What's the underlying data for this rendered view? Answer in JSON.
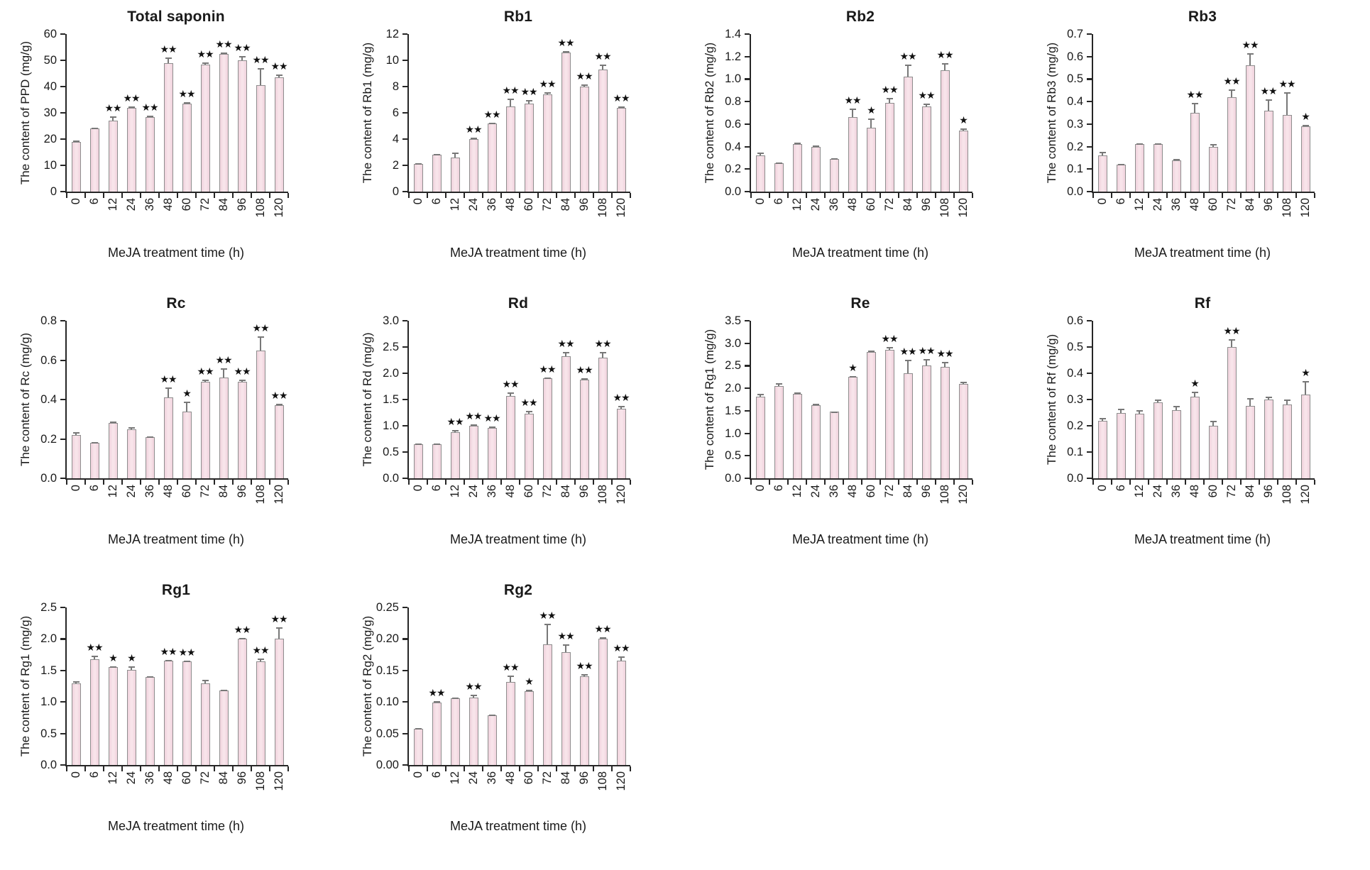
{
  "figure": {
    "x_axis_label": "MeJA treatment time (h)",
    "axis_color": "#262626",
    "bar_fill": "#f5dce4",
    "bar_border": "#8e8e8e",
    "error_color": "#787878",
    "star_color": "#111111"
  },
  "chart_data": [
    {
      "type": "bar",
      "title": "Total saponin",
      "ylabel": "The content of PPD (mg/g)",
      "xlabel": "MeJA treatment time (h)",
      "categories": [
        "0",
        "6",
        "12",
        "24",
        "36",
        "48",
        "60",
        "72",
        "84",
        "96",
        "108",
        "120"
      ],
      "ylim": [
        0,
        60
      ],
      "ystep": 10,
      "decimals": 0,
      "values": [
        19,
        24,
        27,
        32,
        28.5,
        49,
        33.5,
        48.5,
        52.5,
        50,
        40.5,
        43.5
      ],
      "errors": [
        0.4,
        0.4,
        1.6,
        0.5,
        0.5,
        2.0,
        0.6,
        0.8,
        0.5,
        1.5,
        6.5,
        1.0
      ],
      "significance": [
        "",
        "",
        "**",
        "**",
        "**",
        "**",
        "**",
        "**",
        "**",
        "**",
        "**",
        "**"
      ]
    },
    {
      "type": "bar",
      "title": "Rb1",
      "ylabel": "The content of Rb1 (mg/g)",
      "xlabel": "MeJA treatment time (h)",
      "categories": [
        "0",
        "6",
        "12",
        "24",
        "36",
        "48",
        "60",
        "72",
        "84",
        "96",
        "108",
        "120"
      ],
      "ylim": [
        0,
        12
      ],
      "ystep": 2,
      "decimals": 0,
      "values": [
        2.1,
        2.8,
        2.6,
        4.0,
        5.2,
        6.5,
        6.7,
        7.4,
        10.6,
        8.0,
        9.3,
        6.4
      ],
      "errors": [
        0.06,
        0.06,
        0.35,
        0.1,
        0.06,
        0.6,
        0.25,
        0.15,
        0.1,
        0.15,
        0.35,
        0.1
      ],
      "significance": [
        "",
        "",
        "",
        "**",
        "**",
        "**",
        "**",
        "**",
        "**",
        "**",
        "**",
        "**"
      ]
    },
    {
      "type": "bar",
      "title": "Rb2",
      "ylabel": "The content of Rb2 (mg/g)",
      "xlabel": "MeJA treatment time (h)",
      "categories": [
        "0",
        "6",
        "12",
        "24",
        "36",
        "48",
        "60",
        "72",
        "84",
        "96",
        "108",
        "120"
      ],
      "ylim": [
        0,
        1.4
      ],
      "ystep": 0.2,
      "decimals": 1,
      "values": [
        0.32,
        0.25,
        0.42,
        0.4,
        0.29,
        0.66,
        0.57,
        0.79,
        1.02,
        0.76,
        1.08,
        0.54
      ],
      "errors": [
        0.03,
        0.008,
        0.015,
        0.01,
        0.008,
        0.08,
        0.08,
        0.04,
        0.11,
        0.02,
        0.06,
        0.02
      ],
      "significance": [
        "",
        "",
        "",
        "",
        "",
        "**",
        "*",
        "**",
        "**",
        "**",
        "**",
        "*"
      ]
    },
    {
      "type": "bar",
      "title": "Rb3",
      "ylabel": "The content of Rb3 (mg/g)",
      "xlabel": "MeJA treatment time (h)",
      "categories": [
        "0",
        "6",
        "12",
        "24",
        "36",
        "48",
        "60",
        "72",
        "84",
        "96",
        "108",
        "120"
      ],
      "ylim": [
        0,
        0.7
      ],
      "ystep": 0.1,
      "decimals": 1,
      "values": [
        0.16,
        0.12,
        0.21,
        0.21,
        0.14,
        0.35,
        0.2,
        0.42,
        0.56,
        0.36,
        0.34,
        0.29
      ],
      "errors": [
        0.018,
        0.004,
        0.004,
        0.004,
        0.004,
        0.045,
        0.012,
        0.035,
        0.055,
        0.05,
        0.1,
        0.008
      ],
      "significance": [
        "",
        "",
        "",
        "",
        "",
        "**",
        "",
        "**",
        "**",
        "**",
        "**",
        "*"
      ]
    },
    {
      "type": "bar",
      "title": "Rc",
      "ylabel": "The content of Rc (mg/g)",
      "xlabel": "MeJA treatment time (h)",
      "categories": [
        "0",
        "6",
        "12",
        "24",
        "36",
        "48",
        "60",
        "72",
        "84",
        "96",
        "108",
        "120"
      ],
      "ylim": [
        0,
        0.8
      ],
      "ystep": 0.2,
      "decimals": 1,
      "values": [
        0.22,
        0.18,
        0.28,
        0.25,
        0.21,
        0.41,
        0.34,
        0.49,
        0.51,
        0.49,
        0.65,
        0.37
      ],
      "errors": [
        0.015,
        0.004,
        0.01,
        0.008,
        0.004,
        0.05,
        0.05,
        0.012,
        0.05,
        0.01,
        0.07,
        0.008
      ],
      "significance": [
        "",
        "",
        "",
        "",
        "",
        "**",
        "*",
        "**",
        "**",
        "**",
        "**",
        "**"
      ]
    },
    {
      "type": "bar",
      "title": "Rd",
      "ylabel": "The content of Rd (mg/g)",
      "xlabel": "MeJA treatment time (h)",
      "categories": [
        "0",
        "6",
        "12",
        "24",
        "36",
        "48",
        "60",
        "72",
        "84",
        "96",
        "108",
        "120"
      ],
      "ylim": [
        0,
        3.0
      ],
      "ystep": 0.5,
      "decimals": 1,
      "values": [
        0.65,
        0.65,
        0.88,
        1.0,
        0.96,
        1.57,
        1.23,
        1.9,
        2.33,
        1.88,
        2.3,
        1.32
      ],
      "errors": [
        0.01,
        0.01,
        0.04,
        0.03,
        0.02,
        0.06,
        0.05,
        0.02,
        0.08,
        0.02,
        0.1,
        0.06
      ],
      "significance": [
        "",
        "",
        "**",
        "**",
        "**",
        "**",
        "**",
        "**",
        "**",
        "**",
        "**",
        "**"
      ]
    },
    {
      "type": "bar",
      "title": "Re",
      "ylabel": "The content of Rg1 (mg/g)",
      "xlabel": "MeJA treatment time (h)",
      "categories": [
        "0",
        "6",
        "12",
        "24",
        "36",
        "48",
        "60",
        "72",
        "84",
        "96",
        "108",
        "120"
      ],
      "ylim": [
        0,
        3.5
      ],
      "ystep": 0.5,
      "decimals": 1,
      "values": [
        1.82,
        2.05,
        1.87,
        1.63,
        1.48,
        2.25,
        2.8,
        2.85,
        2.33,
        2.5,
        2.48,
        2.1
      ],
      "errors": [
        0.05,
        0.07,
        0.04,
        0.03,
        0.01,
        0.02,
        0.04,
        0.07,
        0.3,
        0.15,
        0.1,
        0.04
      ],
      "significance": [
        "",
        "",
        "",
        "",
        "",
        "*",
        "",
        "**",
        "**",
        "**",
        "**",
        ""
      ]
    },
    {
      "type": "bar",
      "title": "Rf",
      "ylabel": "The content of Rf (mg/g)",
      "xlabel": "MeJA treatment time (h)",
      "categories": [
        "0",
        "6",
        "12",
        "24",
        "36",
        "48",
        "60",
        "72",
        "84",
        "96",
        "108",
        "120"
      ],
      "ylim": [
        0,
        0.6
      ],
      "ystep": 0.1,
      "decimals": 1,
      "values": [
        0.22,
        0.25,
        0.245,
        0.29,
        0.26,
        0.31,
        0.2,
        0.5,
        0.275,
        0.3,
        0.28,
        0.32
      ],
      "errors": [
        0.01,
        0.015,
        0.015,
        0.01,
        0.015,
        0.02,
        0.02,
        0.03,
        0.03,
        0.01,
        0.02,
        0.05
      ],
      "significance": [
        "",
        "",
        "",
        "",
        "",
        "*",
        "",
        "**",
        "",
        "",
        "",
        "*"
      ]
    },
    {
      "type": "bar",
      "title": "Rg1",
      "ylabel": "The content of Rg1 (mg/g)",
      "xlabel": "MeJA treatment time (h)",
      "categories": [
        "0",
        "6",
        "12",
        "24",
        "36",
        "48",
        "60",
        "72",
        "84",
        "96",
        "108",
        "120"
      ],
      "ylim": [
        0,
        2.5
      ],
      "ystep": 0.5,
      "decimals": 1,
      "values": [
        1.3,
        1.68,
        1.55,
        1.51,
        1.4,
        1.65,
        1.64,
        1.3,
        1.18,
        2.0,
        1.64,
        2.0
      ],
      "errors": [
        0.03,
        0.06,
        0.02,
        0.05,
        0.01,
        0.02,
        0.02,
        0.05,
        0.01,
        0.02,
        0.05,
        0.18
      ],
      "significance": [
        "",
        "**",
        "*",
        "*",
        "",
        "**",
        "**",
        "",
        "",
        "**",
        "**",
        "**"
      ]
    },
    {
      "type": "bar",
      "title": "Rg2",
      "ylabel": "The content of Rg2 (mg/g)",
      "xlabel": "MeJA treatment time (h)",
      "categories": [
        "0",
        "6",
        "12",
        "24",
        "36",
        "48",
        "60",
        "72",
        "84",
        "96",
        "108",
        "120"
      ],
      "ylim": [
        0,
        0.25
      ],
      "ystep": 0.05,
      "decimals": 2,
      "values": [
        0.058,
        0.099,
        0.106,
        0.107,
        0.079,
        0.132,
        0.117,
        0.192,
        0.179,
        0.141,
        0.201,
        0.166
      ],
      "errors": [
        0.001,
        0.002,
        0.001,
        0.005,
        0.001,
        0.01,
        0.002,
        0.032,
        0.012,
        0.003,
        0.002,
        0.006
      ],
      "significance": [
        "",
        "**",
        "",
        "**",
        "",
        "**",
        "*",
        "**",
        "**",
        "**",
        "**",
        "**"
      ]
    }
  ]
}
